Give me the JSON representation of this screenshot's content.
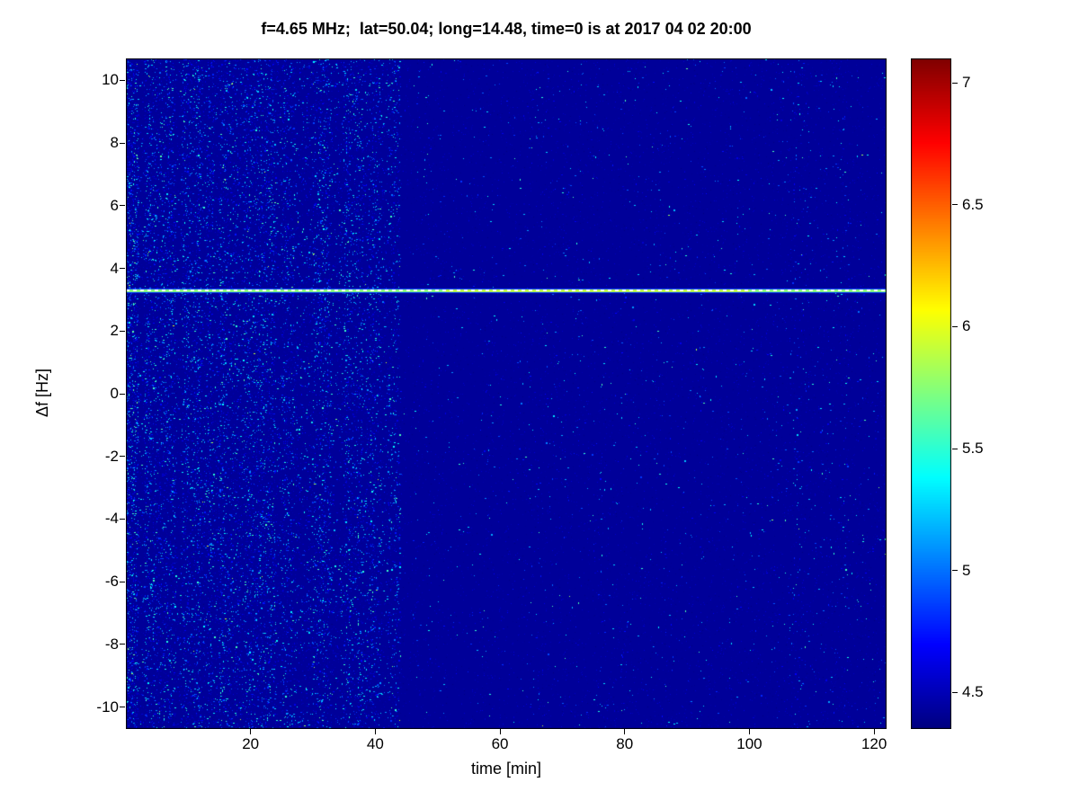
{
  "chart_data": {
    "type": "heatmap",
    "title": "f=4.65 MHz;  lat=50.04; long=14.48, time=0 is at 2017 04 02 20:00",
    "xlabel": "time [min]",
    "ylabel": "Δf [Hz]",
    "xlim": [
      0,
      122
    ],
    "ylim": [
      -10.7,
      10.7
    ],
    "xticks": [
      20,
      40,
      60,
      80,
      100,
      120
    ],
    "yticks": [
      10,
      8,
      6,
      4,
      2,
      0,
      -2,
      -4,
      -6,
      -8,
      -10
    ],
    "colormap": "jet",
    "clim": [
      4.35,
      7.1
    ],
    "colorbar_ticks": [
      7,
      6.5,
      6,
      5.5,
      5,
      4.5
    ],
    "background_value": 4.42,
    "features": {
      "signal_line": {
        "delta_f_hz": 3.3,
        "value": 5.75,
        "style": "bright green horizontal line with white dashes spanning full time range"
      },
      "dense_noise": {
        "time_range_min": [
          0,
          45
        ],
        "value_range": [
          4.45,
          5.8
        ],
        "description": "dense blue/cyan speckle noise with vertical striping"
      },
      "sparse_noise": {
        "time_range_min": [
          45,
          122
        ],
        "value_range": [
          4.4,
          5.0
        ],
        "description": "sparse faint speckles on dark navy background"
      },
      "faint_vertical_stripes_min": [
        107,
        115
      ]
    }
  }
}
